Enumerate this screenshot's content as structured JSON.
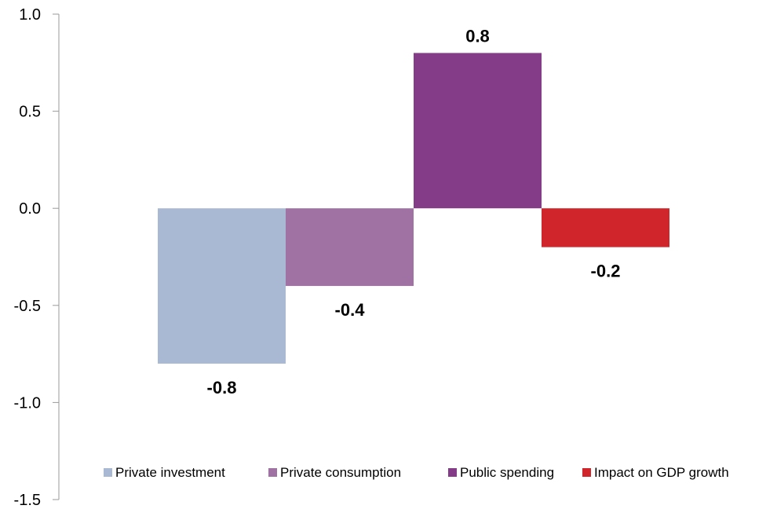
{
  "chart_data": {
    "type": "bar",
    "subtype": "waterfall",
    "categories": [
      "Private investment",
      "Private consumption",
      "Public spending",
      "Impact on GDP growth"
    ],
    "series": [
      {
        "name": "Private investment",
        "start": 0.0,
        "end": -0.8,
        "value": -0.8,
        "label": "-0.8",
        "color": "#a9b9d3"
      },
      {
        "name": "Private consumption",
        "start": 0.0,
        "end": -0.4,
        "value": -0.4,
        "label": "-0.4",
        "color": "#a071a3"
      },
      {
        "name": "Public spending",
        "start": 0.0,
        "end": 0.8,
        "value": 0.8,
        "label": "0.8",
        "color": "#843c88"
      },
      {
        "name": "Impact on GDP growth",
        "start": 0.0,
        "end": -0.2,
        "value": -0.2,
        "label": "-0.2",
        "color": "#d0262b"
      }
    ],
    "title": "",
    "xlabel": "",
    "ylabel": "",
    "ylim": [
      -1.5,
      1.0
    ],
    "yticks": [
      1.0,
      0.5,
      0.0,
      -0.5,
      -1.0,
      -1.5
    ],
    "ytick_labels": [
      "1.0",
      "0.5",
      "0.0",
      "-0.5",
      "-1.0",
      "-1.5"
    ],
    "grid": false,
    "legend": "bottom"
  }
}
